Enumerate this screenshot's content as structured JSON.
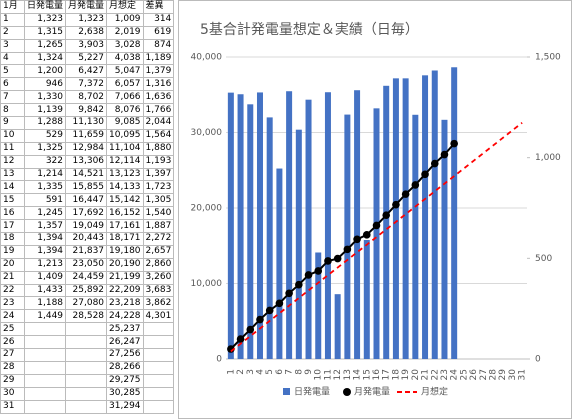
{
  "table": {
    "headers": [
      "1月",
      "日発電量",
      "月発電量",
      "月想定",
      "差異"
    ],
    "rows": [
      [
        "1",
        "1,323",
        "1,323",
        "1,009",
        "314"
      ],
      [
        "2",
        "1,315",
        "2,638",
        "2,019",
        "619"
      ],
      [
        "3",
        "1,265",
        "3,903",
        "3,028",
        "874"
      ],
      [
        "4",
        "1,324",
        "5,227",
        "4,038",
        "1,189"
      ],
      [
        "5",
        "1,200",
        "6,427",
        "5,047",
        "1,379"
      ],
      [
        "6",
        "946",
        "7,372",
        "6,057",
        "1,316"
      ],
      [
        "7",
        "1,330",
        "8,702",
        "7,066",
        "1,636"
      ],
      [
        "8",
        "1,139",
        "9,842",
        "8,076",
        "1,766"
      ],
      [
        "9",
        "1,288",
        "11,130",
        "9,085",
        "2,044"
      ],
      [
        "10",
        "529",
        "11,659",
        "10,095",
        "1,564"
      ],
      [
        "11",
        "1,325",
        "12,984",
        "11,104",
        "1,880"
      ],
      [
        "12",
        "322",
        "13,306",
        "12,114",
        "1,193"
      ],
      [
        "13",
        "1,214",
        "14,521",
        "13,123",
        "1,397"
      ],
      [
        "14",
        "1,335",
        "15,855",
        "14,133",
        "1,723"
      ],
      [
        "15",
        "591",
        "16,447",
        "15,142",
        "1,305"
      ],
      [
        "16",
        "1,245",
        "17,692",
        "16,152",
        "1,540"
      ],
      [
        "17",
        "1,357",
        "19,049",
        "17,161",
        "1,887"
      ],
      [
        "18",
        "1,394",
        "20,443",
        "18,171",
        "2,272"
      ],
      [
        "19",
        "1,394",
        "21,837",
        "19,180",
        "2,657"
      ],
      [
        "20",
        "1,213",
        "23,050",
        "20,190",
        "2,860"
      ],
      [
        "21",
        "1,409",
        "24,459",
        "21,199",
        "3,260"
      ],
      [
        "22",
        "1,433",
        "25,892",
        "22,209",
        "3,683"
      ],
      [
        "23",
        "1,188",
        "27,080",
        "23,218",
        "3,862"
      ],
      [
        "24",
        "1,449",
        "28,528",
        "24,228",
        "4,301"
      ],
      [
        "25",
        null,
        null,
        "25,237",
        null
      ],
      [
        "26",
        null,
        null,
        "26,247",
        null
      ],
      [
        "27",
        null,
        null,
        "27,256",
        null
      ],
      [
        "28",
        null,
        null,
        "28,266",
        null
      ],
      [
        "29",
        null,
        null,
        "29,275",
        null
      ],
      [
        "30",
        null,
        null,
        "30,285",
        null
      ],
      [
        "31",
        null,
        null,
        "31,294",
        null
      ]
    ]
  },
  "chart_data": {
    "type": "combo",
    "title": "5基合計発電量想定＆実績（日毎）",
    "categories": [
      "1",
      "2",
      "3",
      "4",
      "5",
      "6",
      "7",
      "8",
      "9",
      "10",
      "11",
      "12",
      "13",
      "14",
      "15",
      "16",
      "17",
      "18",
      "19",
      "20",
      "21",
      "22",
      "23",
      "24",
      "25",
      "26",
      "27",
      "28",
      "29",
      "30",
      "31"
    ],
    "ylim": [
      0,
      40000
    ],
    "yticks": [
      0,
      {
        "value": 10000,
        "label": "10,000"
      },
      {
        "value": 20000,
        "label": "20,000"
      },
      {
        "value": 30000,
        "label": "30,000"
      },
      {
        "value": 40000,
        "label": "40,000"
      }
    ],
    "y2lim": [
      0,
      1500
    ],
    "y2ticks": [
      0,
      500,
      {
        "value": 1000,
        "label": "1,000"
      },
      {
        "value": 1500,
        "label": "1,500"
      }
    ],
    "legend": "bottom",
    "series": [
      {
        "name": "日発電量",
        "kind": "bar",
        "axis": "y2",
        "color": "#4472c4",
        "values": [
          1323,
          1315,
          1265,
          1324,
          1200,
          946,
          1330,
          1139,
          1288,
          529,
          1325,
          322,
          1214,
          1335,
          591,
          1245,
          1357,
          1394,
          1394,
          1213,
          1409,
          1433,
          1188,
          1449,
          null,
          null,
          null,
          null,
          null,
          null,
          null
        ]
      },
      {
        "name": "月発電量",
        "kind": "line-marker",
        "color": "#000000",
        "values": [
          1323,
          2638,
          3903,
          5227,
          6427,
          7372,
          8702,
          9842,
          11130,
          11659,
          12984,
          13306,
          14521,
          15855,
          16447,
          17692,
          19049,
          20443,
          21837,
          23050,
          24459,
          25892,
          27080,
          28528,
          null,
          null,
          null,
          null,
          null,
          null,
          null
        ]
      },
      {
        "name": "月想定",
        "kind": "dashed-line",
        "color": "#ff0000",
        "values": [
          1009,
          2019,
          3028,
          4038,
          5047,
          6057,
          7066,
          8076,
          9085,
          10095,
          11104,
          12114,
          13123,
          14133,
          15142,
          16152,
          17161,
          18171,
          19180,
          20190,
          21199,
          22209,
          23218,
          24228,
          25237,
          26247,
          27256,
          28266,
          29275,
          30285,
          31294
        ]
      }
    ]
  }
}
